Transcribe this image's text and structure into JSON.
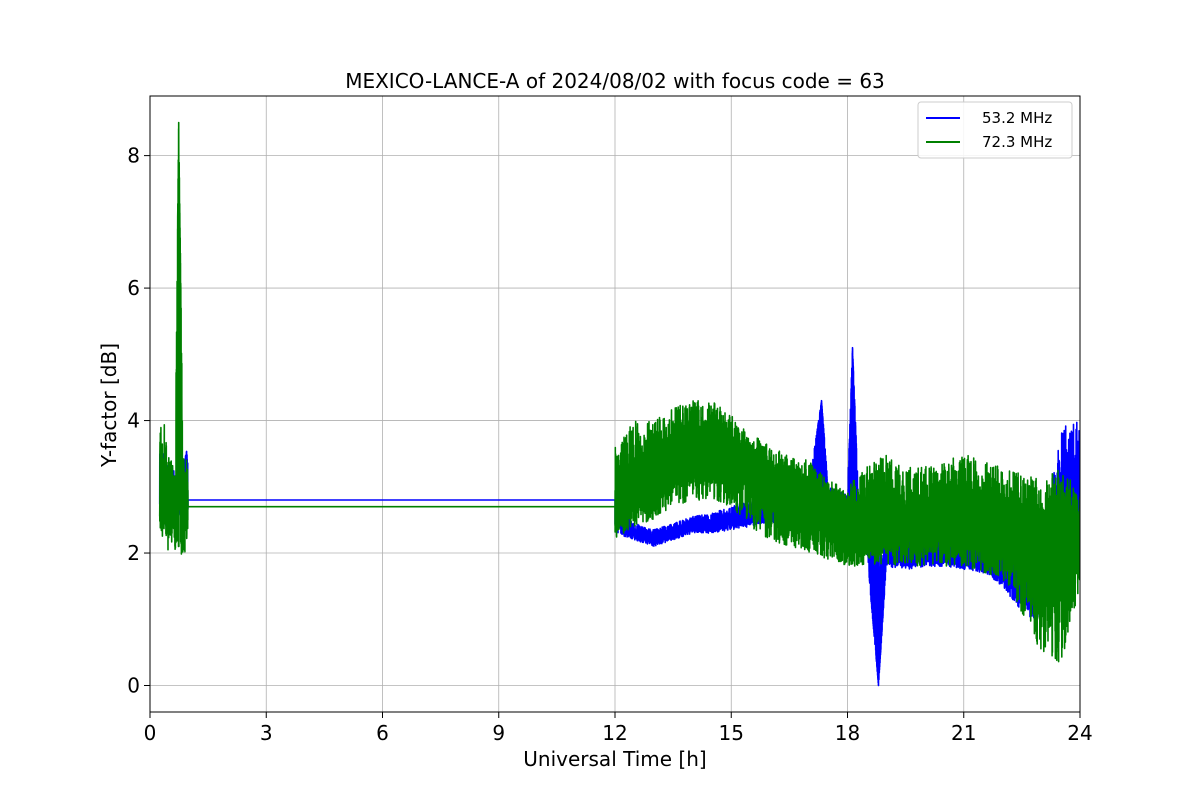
{
  "chart_data": {
    "type": "line",
    "title": "MEXICO-LANCE-A of 2024/08/02 with focus code = 63",
    "xlabel": "Universal Time [h]",
    "ylabel": "Y-factor [dB]",
    "xlim": [
      0,
      24
    ],
    "ylim": [
      -0.4,
      8.9
    ],
    "xticks": [
      0,
      3,
      6,
      9,
      12,
      15,
      18,
      21,
      24
    ],
    "yticks": [
      0,
      2,
      4,
      6,
      8
    ],
    "grid": true,
    "legend_position": "top-right",
    "series": [
      {
        "name": "53.2 MHz",
        "color": "#0000ff",
        "x": [
          0.25,
          0.35,
          0.45,
          0.55,
          0.65,
          0.75,
          0.85,
          0.95,
          0.98,
          12.0,
          12.5,
          13.0,
          13.5,
          14.0,
          14.5,
          15.0,
          15.5,
          16.0,
          16.5,
          17.0,
          17.33,
          17.5,
          18.0,
          18.13,
          18.3,
          18.5,
          18.8,
          19.0,
          19.5,
          20.0,
          20.5,
          21.0,
          21.5,
          22.0,
          22.5,
          23.0,
          23.5,
          24.0
        ],
        "y": [
          2.8,
          3.3,
          2.6,
          3.0,
          2.7,
          3.2,
          2.9,
          3.5,
          2.8,
          2.8,
          2.3,
          2.2,
          2.3,
          2.4,
          2.4,
          2.5,
          2.55,
          2.6,
          2.6,
          2.6,
          4.3,
          2.6,
          2.5,
          5.1,
          2.3,
          2.3,
          0.0,
          2.0,
          1.9,
          2.0,
          2.0,
          1.95,
          1.9,
          1.8,
          1.6,
          1.3,
          3.0,
          3.0
        ],
        "y_low": [
          2.4,
          2.5,
          2.3,
          2.5,
          2.4,
          2.6,
          2.4,
          2.5,
          2.5,
          2.3,
          2.2,
          2.1,
          2.2,
          2.3,
          2.3,
          2.35,
          2.4,
          2.45,
          2.45,
          2.4,
          2.4,
          2.3,
          2.2,
          2.2,
          2.1,
          2.0,
          0.0,
          1.8,
          1.75,
          1.8,
          1.8,
          1.75,
          1.7,
          1.5,
          1.1,
          0.9,
          2.1,
          2.0
        ],
        "y_high": [
          3.5,
          3.5,
          3.3,
          3.4,
          3.2,
          3.5,
          3.3,
          3.55,
          3.4,
          2.8,
          2.45,
          2.35,
          2.45,
          2.55,
          2.6,
          2.7,
          2.8,
          2.9,
          3.0,
          3.0,
          4.3,
          3.0,
          2.9,
          5.1,
          2.6,
          2.5,
          2.0,
          2.3,
          2.2,
          2.3,
          2.3,
          2.2,
          2.2,
          2.2,
          2.1,
          2.0,
          3.9,
          4.0
        ]
      },
      {
        "name": "72.3 MHz",
        "color": "#008000",
        "x": [
          0.25,
          0.35,
          0.45,
          0.55,
          0.65,
          0.74,
          0.85,
          0.95,
          0.98,
          12.0,
          12.5,
          13.0,
          13.5,
          14.0,
          14.5,
          15.0,
          15.5,
          16.0,
          16.5,
          17.0,
          17.5,
          18.0,
          18.5,
          19.0,
          19.5,
          20.0,
          20.5,
          21.0,
          21.5,
          22.0,
          22.5,
          23.0,
          23.5,
          24.0
        ],
        "y": [
          2.7,
          3.0,
          2.8,
          2.9,
          2.6,
          8.5,
          2.7,
          3.0,
          2.7,
          2.7,
          3.0,
          3.2,
          3.4,
          3.5,
          3.5,
          3.4,
          3.2,
          3.0,
          2.9,
          2.7,
          2.6,
          2.5,
          2.4,
          2.5,
          2.5,
          2.5,
          2.6,
          2.5,
          2.5,
          2.4,
          2.2,
          2.0,
          2.1,
          2.2
        ],
        "y_low": [
          2.2,
          2.1,
          2.0,
          2.1,
          2.0,
          2.1,
          1.9,
          2.1,
          2.2,
          2.2,
          2.4,
          2.5,
          2.7,
          2.8,
          2.8,
          2.7,
          2.4,
          2.2,
          2.1,
          2.0,
          1.9,
          1.8,
          1.8,
          1.8,
          1.8,
          1.8,
          1.8,
          1.8,
          1.7,
          1.6,
          1.1,
          0.5,
          0.3,
          1.5
        ],
        "y_high": [
          3.8,
          4.1,
          3.5,
          3.5,
          3.4,
          8.5,
          3.5,
          3.5,
          3.3,
          3.6,
          4.0,
          4.0,
          4.2,
          4.3,
          4.3,
          4.1,
          3.9,
          3.6,
          3.5,
          3.4,
          3.1,
          3.0,
          3.3,
          3.5,
          3.3,
          3.3,
          3.4,
          3.5,
          3.4,
          3.3,
          3.2,
          3.1,
          3.3,
          3.0
        ]
      }
    ]
  }
}
